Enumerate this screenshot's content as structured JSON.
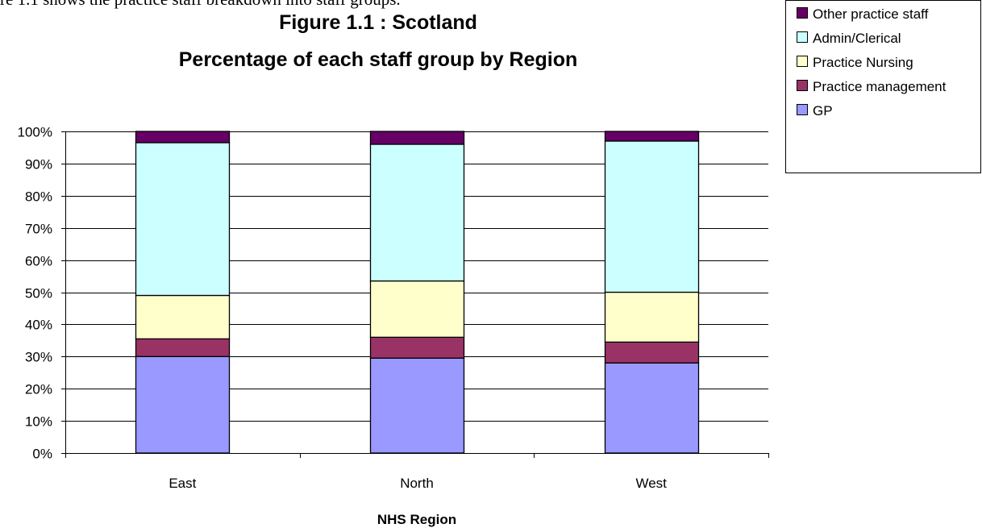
{
  "intro_text": "re 1.1 shows the practice staff breakdown into staff groups.",
  "chart_data": {
    "type": "bar",
    "stacked": "percent",
    "title": "Figure 1.1 : Scotland",
    "subtitle": "Percentage of each staff group by Region",
    "xlabel": "NHS Region",
    "ylabel": "",
    "ylim": [
      0,
      100
    ],
    "y_ticks": [
      "0%",
      "10%",
      "20%",
      "30%",
      "40%",
      "50%",
      "60%",
      "70%",
      "80%",
      "90%",
      "100%"
    ],
    "categories": [
      "East",
      "North",
      "West"
    ],
    "series": [
      {
        "name": "GP",
        "color": "#9999ff",
        "values": [
          30,
          29.5,
          28
        ]
      },
      {
        "name": "Practice management",
        "color": "#993366",
        "values": [
          5.5,
          6.5,
          6.5
        ]
      },
      {
        "name": "Practice Nursing",
        "color": "#ffffcc",
        "values": [
          13.5,
          17.5,
          15.5
        ]
      },
      {
        "name": "Admin/Clerical",
        "color": "#ccffff",
        "values": [
          47.5,
          42.5,
          47
        ]
      },
      {
        "name": "Other practice staff",
        "color": "#660066",
        "values": [
          3.5,
          4,
          3
        ]
      }
    ],
    "legend": {
      "position": "top-right",
      "order": [
        "Other practice staff",
        "Admin/Clerical",
        "Practice Nursing",
        "Practice management",
        "GP"
      ]
    },
    "grid": true
  }
}
